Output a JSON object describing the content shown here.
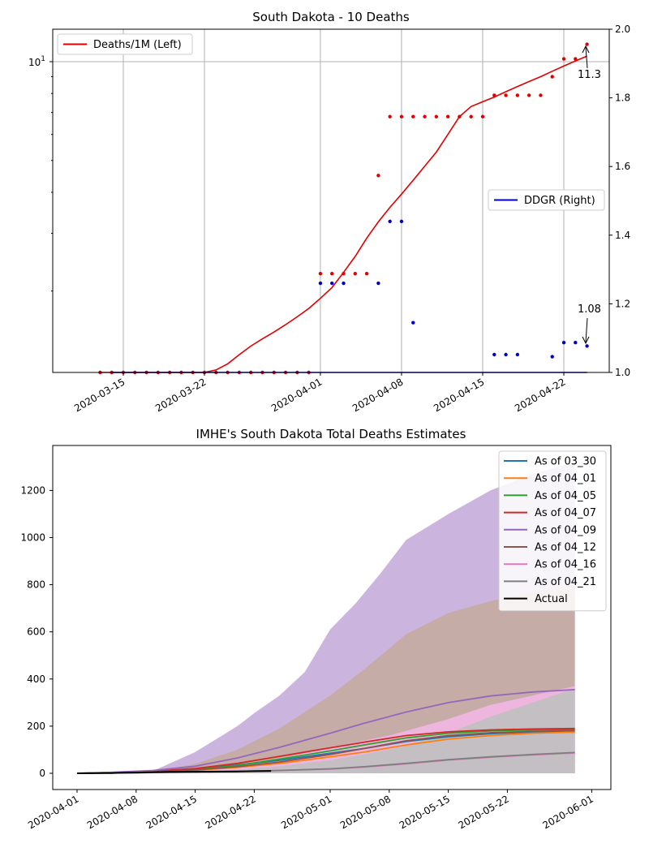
{
  "colors": {
    "deaths": "#e00000",
    "ddgr": "#0000c8",
    "grid": "#b0b0b0",
    "axis": "#000000",
    "band_0409": "#c8b0dc",
    "band_0412": "#c4aca2",
    "band_0416": "#f0b6e0",
    "band_0421": "#c0c0c0",
    "actual": "#000000"
  },
  "chart_data": [
    {
      "type": "scatter",
      "title": "South Dakota - 10 Deaths",
      "legend": {
        "left": "Deaths/1M (Left)",
        "left_placement": "top-left",
        "right": "DDGR (Right)",
        "right_placement": "center-right"
      },
      "x_ticks": [
        "2020-03-15",
        "2020-03-22",
        "2020-04-01",
        "2020-04-08",
        "2020-04-15",
        "2020-04-22"
      ],
      "y_left_scale": "log",
      "y_left_ticks": [
        "10^1"
      ],
      "y_right_ticks": [
        "1.0",
        "1.2",
        "1.4",
        "1.6",
        "1.8",
        "2.0"
      ],
      "y_right_lim": [
        1.0,
        2.0
      ],
      "grid": true,
      "annotations": [
        {
          "text": "11.3",
          "x": "2020-04-24",
          "y": 11.3
        },
        {
          "text": "1.08",
          "x": "2020-04-24",
          "y": 1.08
        }
      ],
      "series": [
        {
          "name": "Deaths/1M (Left)",
          "mark": "points",
          "dates": [
            "2020-03-13",
            "2020-03-14",
            "2020-03-15",
            "2020-03-16",
            "2020-03-17",
            "2020-03-18",
            "2020-03-19",
            "2020-03-20",
            "2020-03-21",
            "2020-03-22",
            "2020-03-23",
            "2020-03-24",
            "2020-03-25",
            "2020-03-26",
            "2020-03-27",
            "2020-03-28",
            "2020-03-29",
            "2020-03-30",
            "2020-03-31",
            "2020-04-01",
            "2020-04-02",
            "2020-04-03",
            "2020-04-04",
            "2020-04-05",
            "2020-04-06",
            "2020-04-07",
            "2020-04-08",
            "2020-04-09",
            "2020-04-10",
            "2020-04-11",
            "2020-04-12",
            "2020-04-13",
            "2020-04-14",
            "2020-04-15",
            "2020-04-16",
            "2020-04-17",
            "2020-04-18",
            "2020-04-19",
            "2020-04-20",
            "2020-04-21",
            "2020-04-22",
            "2020-04-23",
            "2020-04-24"
          ],
          "values": [
            1.13,
            1.13,
            1.13,
            1.13,
            1.13,
            1.13,
            1.13,
            1.13,
            1.13,
            1.13,
            1.13,
            1.13,
            1.13,
            1.13,
            1.13,
            1.13,
            1.13,
            1.13,
            1.13,
            2.26,
            2.26,
            2.26,
            2.26,
            2.26,
            4.5,
            6.8,
            6.8,
            6.8,
            6.8,
            6.8,
            6.8,
            6.8,
            6.8,
            6.8,
            7.9,
            7.9,
            7.9,
            7.9,
            7.9,
            9.0,
            10.2,
            10.2,
            11.3
          ]
        },
        {
          "name": "Deaths/1M (Left) smoothed",
          "mark": "line",
          "dates": [
            "2020-03-13",
            "2020-03-22",
            "2020-03-23",
            "2020-03-24",
            "2020-03-25",
            "2020-03-26",
            "2020-03-27",
            "2020-03-28",
            "2020-03-29",
            "2020-03-30",
            "2020-03-31",
            "2020-04-01",
            "2020-04-02",
            "2020-04-03",
            "2020-04-04",
            "2020-04-05",
            "2020-04-06",
            "2020-04-07",
            "2020-04-08",
            "2020-04-09",
            "2020-04-10",
            "2020-04-11",
            "2020-04-12",
            "2020-04-13",
            "2020-04-14",
            "2020-04-15",
            "2020-04-16",
            "2020-04-17",
            "2020-04-18",
            "2020-04-19",
            "2020-04-20",
            "2020-04-21",
            "2020-04-22",
            "2020-04-23",
            "2020-04-24"
          ],
          "values": [
            1.13,
            1.13,
            1.15,
            1.2,
            1.28,
            1.36,
            1.43,
            1.5,
            1.58,
            1.67,
            1.77,
            1.9,
            2.05,
            2.28,
            2.55,
            2.9,
            3.25,
            3.6,
            3.95,
            4.35,
            4.8,
            5.3,
            6.0,
            6.8,
            7.3,
            7.55,
            7.8,
            8.1,
            8.4,
            8.7,
            9.0,
            9.35,
            9.7,
            10.05,
            10.4
          ]
        },
        {
          "name": "DDGR (Right)",
          "mark": "points",
          "dates": [
            "2020-04-01",
            "2020-04-02",
            "2020-04-03",
            "2020-04-06",
            "2020-04-07",
            "2020-04-08",
            "2020-04-09",
            "2020-04-16",
            "2020-04-17",
            "2020-04-18",
            "2020-04-21",
            "2020-04-22",
            "2020-04-23",
            "2020-04-24"
          ],
          "values": [
            1.26,
            1.26,
            1.26,
            1.26,
            1.44,
            1.44,
            1.145,
            1.052,
            1.052,
            1.052,
            1.046,
            1.087,
            1.087,
            1.077
          ]
        },
        {
          "name": "DDGR (Right) baseline",
          "mark": "line",
          "dates": [
            "2020-03-14",
            "2020-04-24"
          ],
          "values": [
            1.0,
            1.0
          ]
        }
      ]
    },
    {
      "type": "area",
      "title": "IMHE's South Dakota Total Deaths Estimates",
      "x_ticks": [
        "2020-04-01",
        "2020-04-08",
        "2020-04-15",
        "2020-04-22",
        "2020-05-01",
        "2020-05-08",
        "2020-05-15",
        "2020-05-22",
        "2020-06-01"
      ],
      "y_ticks": [
        "0",
        "200",
        "400",
        "600",
        "800",
        "1000",
        "1200"
      ],
      "ylim": [
        -70,
        1380
      ],
      "legend_placement": "top-right",
      "bands": [
        {
          "color_key": "band_0409",
          "dates": [
            "2020-04-01",
            "2020-04-10",
            "2020-04-15",
            "2020-04-20",
            "2020-04-22",
            "2020-04-25",
            "2020-04-28",
            "2020-05-01",
            "2020-05-04",
            "2020-05-07",
            "2020-05-10",
            "2020-05-15",
            "2020-05-20",
            "2020-05-25",
            "2020-05-30"
          ],
          "values": [
            0,
            10,
            90,
            200,
            255,
            330,
            430,
            610,
            720,
            850,
            990,
            1100,
            1200,
            1270,
            1320
          ]
        },
        {
          "color_key": "band_0412",
          "dates": [
            "2020-04-01",
            "2020-04-10",
            "2020-04-15",
            "2020-04-20",
            "2020-04-25",
            "2020-05-01",
            "2020-05-05",
            "2020-05-10",
            "2020-05-15",
            "2020-05-20",
            "2020-05-25",
            "2020-05-30"
          ],
          "values": [
            0,
            6,
            40,
            100,
            190,
            330,
            440,
            590,
            680,
            730,
            770,
            800
          ]
        },
        {
          "color_key": "band_0416",
          "dates": [
            "2020-04-01",
            "2020-04-20",
            "2020-04-25",
            "2020-05-01",
            "2020-05-08",
            "2020-05-15",
            "2020-05-20",
            "2020-05-25",
            "2020-05-30"
          ],
          "values": [
            0,
            30,
            60,
            110,
            160,
            230,
            290,
            330,
            370
          ]
        },
        {
          "color_key": "band_0421",
          "dates": [
            "2020-04-01",
            "2020-04-20",
            "2020-04-25",
            "2020-05-01",
            "2020-05-08",
            "2020-05-15",
            "2020-05-20",
            "2020-05-25",
            "2020-05-30"
          ],
          "values": [
            0,
            15,
            30,
            55,
            100,
            170,
            240,
            300,
            360
          ]
        }
      ],
      "series": [
        {
          "name": "As of 03_30",
          "color": "#1f77b4",
          "dates": [
            "2020-04-01",
            "2020-04-05",
            "2020-04-10",
            "2020-04-15",
            "2020-04-20",
            "2020-04-25",
            "2020-05-01",
            "2020-05-05",
            "2020-05-10",
            "2020-05-15",
            "2020-05-20",
            "2020-05-25",
            "2020-05-30"
          ],
          "values": [
            0,
            2,
            8,
            18,
            35,
            55,
            85,
            105,
            135,
            155,
            168,
            175,
            178
          ]
        },
        {
          "name": "As of 04_01",
          "color": "#ff7f0e",
          "dates": [
            "2020-04-01",
            "2020-04-05",
            "2020-04-10",
            "2020-04-15",
            "2020-04-20",
            "2020-04-25",
            "2020-05-01",
            "2020-05-05",
            "2020-05-10",
            "2020-05-15",
            "2020-05-20",
            "2020-05-25",
            "2020-05-30"
          ],
          "values": [
            0,
            2,
            5,
            12,
            25,
            42,
            70,
            90,
            120,
            145,
            160,
            170,
            175
          ]
        },
        {
          "name": "As of 04_05",
          "color": "#2ca02c",
          "dates": [
            "2020-04-01",
            "2020-04-05",
            "2020-04-10",
            "2020-04-15",
            "2020-04-20",
            "2020-04-25",
            "2020-05-01",
            "2020-05-05",
            "2020-05-10",
            "2020-05-15",
            "2020-05-20",
            "2020-05-25",
            "2020-05-30"
          ],
          "values": [
            0,
            2,
            7,
            16,
            33,
            60,
            95,
            120,
            150,
            170,
            180,
            184,
            186
          ]
        },
        {
          "name": "As of 04_07",
          "color": "#d62728",
          "dates": [
            "2020-04-01",
            "2020-04-05",
            "2020-04-10",
            "2020-04-15",
            "2020-04-20",
            "2020-04-25",
            "2020-05-01",
            "2020-05-05",
            "2020-05-10",
            "2020-05-15",
            "2020-05-20",
            "2020-05-25",
            "2020-05-30"
          ],
          "values": [
            0,
            3,
            9,
            20,
            42,
            72,
            108,
            132,
            160,
            176,
            184,
            188,
            190
          ]
        },
        {
          "name": "As of 04_09",
          "color": "#9467bd",
          "dates": [
            "2020-04-01",
            "2020-04-05",
            "2020-04-10",
            "2020-04-15",
            "2020-04-20",
            "2020-04-25",
            "2020-05-01",
            "2020-05-05",
            "2020-05-10",
            "2020-05-15",
            "2020-05-20",
            "2020-05-25",
            "2020-05-30"
          ],
          "values": [
            0,
            4,
            12,
            30,
            65,
            110,
            170,
            212,
            260,
            300,
            328,
            345,
            355
          ]
        },
        {
          "name": "As of 04_12",
          "color": "#8c564b",
          "dates": [
            "2020-04-01",
            "2020-04-05",
            "2020-04-10",
            "2020-04-15",
            "2020-04-20",
            "2020-04-25",
            "2020-05-01",
            "2020-05-05",
            "2020-05-10",
            "2020-05-15",
            "2020-05-20",
            "2020-05-25",
            "2020-05-30"
          ],
          "values": [
            0,
            2,
            6,
            14,
            28,
            48,
            80,
            105,
            138,
            160,
            172,
            178,
            181
          ]
        },
        {
          "name": "As of 04_16",
          "color": "#e377c2",
          "dates": [
            "2020-04-01",
            "2020-04-05",
            "2020-04-10",
            "2020-04-15",
            "2020-04-20",
            "2020-04-25",
            "2020-05-01",
            "2020-05-05",
            "2020-05-10",
            "2020-05-15",
            "2020-05-20",
            "2020-05-25",
            "2020-05-30"
          ],
          "values": [
            0,
            1,
            3,
            5,
            8,
            12,
            18,
            26,
            40,
            56,
            68,
            78,
            86
          ]
        },
        {
          "name": "As of 04_21",
          "color": "#7f7f7f",
          "dates": [
            "2020-04-01",
            "2020-04-05",
            "2020-04-10",
            "2020-04-15",
            "2020-04-20",
            "2020-04-25",
            "2020-05-01",
            "2020-05-05",
            "2020-05-10",
            "2020-05-15",
            "2020-05-20",
            "2020-05-25",
            "2020-05-30"
          ],
          "values": [
            0,
            1,
            3,
            5,
            8,
            12,
            19,
            28,
            42,
            58,
            70,
            80,
            88
          ]
        },
        {
          "name": "Actual",
          "color": "#000000",
          "dates": [
            "2020-04-01",
            "2020-04-05",
            "2020-04-06",
            "2020-04-08",
            "2020-04-12",
            "2020-04-16",
            "2020-04-20",
            "2020-04-22",
            "2020-04-24"
          ],
          "values": [
            0,
            1,
            2,
            3,
            6,
            7,
            8,
            9,
            10
          ]
        }
      ]
    }
  ]
}
